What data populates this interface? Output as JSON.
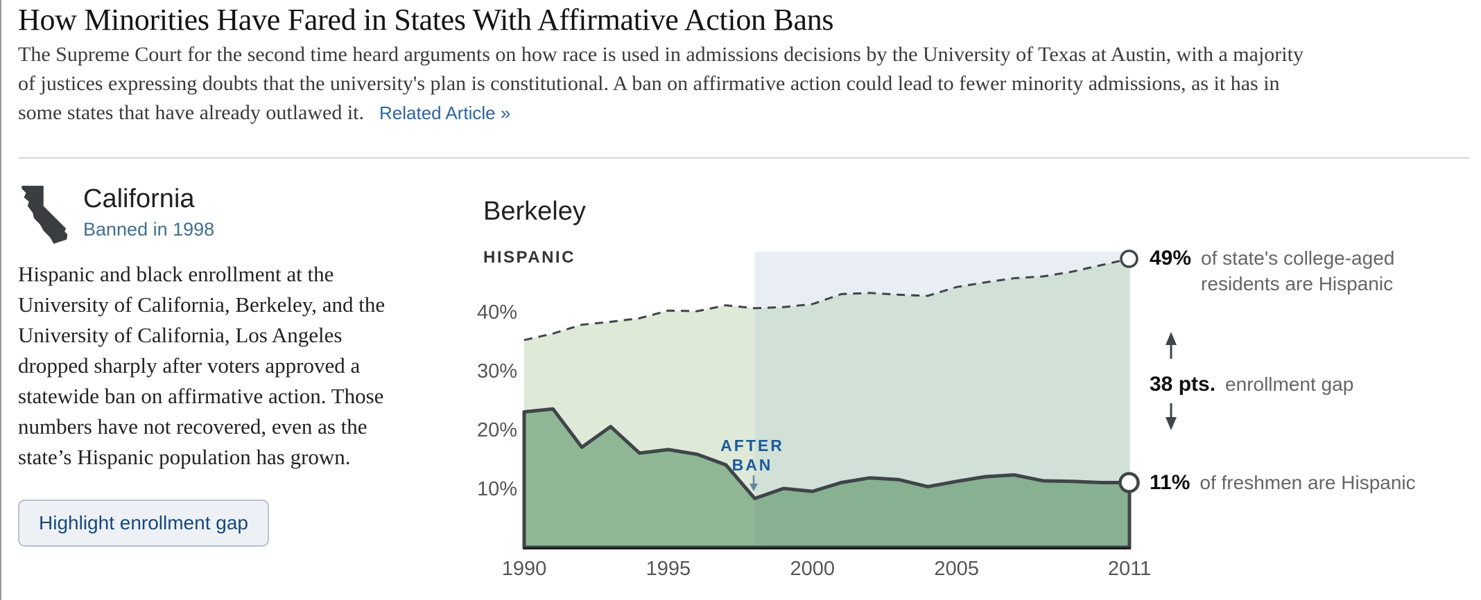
{
  "theme": {
    "link_blue": "#2c65a0",
    "banned_teal": "#40708e",
    "button_text": "#17497a",
    "annotation_gray": "#656565",
    "annotation_dark": "#111111"
  },
  "header": {
    "title": "How Minorities Have Fared in States With Affirmative Action Bans",
    "intro_lines": [
      "The Supreme Court for the second time heard arguments on how race is used in admissions decisions by the University of Texas at Austin, with a majority",
      "of justices expressing doubts that the university's plan is constitutional. A ban on affirmative action could lead to fewer minority admissions, as it has in",
      "some states that have already outlawed it."
    ],
    "related_link": "Related Article »"
  },
  "state_panel": {
    "name": "California",
    "banned_label": "Banned in 1998",
    "icon": "california-silhouette-icon",
    "body_lines": [
      "Hispanic and black enrollment at the",
      "University of California, Berkeley, and the",
      "University of California, Los Angeles",
      "dropped sharply after voters approved a",
      "statewide ban on affirmative action. Those",
      "numbers have not recovered, even as the",
      "state’s Hispanic population has grown."
    ],
    "button_label": "Highlight enrollment gap"
  },
  "chart_data": {
    "type": "area",
    "title": "Berkeley",
    "series_label": "HISPANIC",
    "x": [
      1990,
      1991,
      1992,
      1993,
      1994,
      1995,
      1996,
      1997,
      1998,
      1999,
      2000,
      2001,
      2002,
      2003,
      2004,
      2005,
      2006,
      2007,
      2008,
      2009,
      2010,
      2011
    ],
    "series": [
      {
        "name": "Share of state's college-aged residents who are Hispanic",
        "style": "dashed",
        "values": [
          35.2,
          36.3,
          37.8,
          38.3,
          38.9,
          40.2,
          40.1,
          41.1,
          40.6,
          40.8,
          41.3,
          43.0,
          43.2,
          42.9,
          42.7,
          44.2,
          45.0,
          45.7,
          46.0,
          46.8,
          47.9,
          49.0
        ]
      },
      {
        "name": "Share of freshmen who are Hispanic",
        "style": "solid",
        "values": [
          23.0,
          23.5,
          17.0,
          20.5,
          16.0,
          16.6,
          15.8,
          14.0,
          8.3,
          10.0,
          9.5,
          11.0,
          11.8,
          11.5,
          10.3,
          11.2,
          12.0,
          12.3,
          11.3,
          11.2,
          11.0,
          11.0
        ]
      }
    ],
    "ban_year": 1998,
    "xticks": [
      1990,
      1995,
      2000,
      2005,
      2011
    ],
    "yticks": [
      {
        "value": 10,
        "label": "10%"
      },
      {
        "value": 20,
        "label": "20%"
      },
      {
        "value": 30,
        "label": "30%"
      },
      {
        "value": 40,
        "label": "40%"
      }
    ],
    "ylim": [
      0,
      50
    ],
    "grid": false,
    "legend_position": "none",
    "annotations": {
      "after_ban": {
        "text": "AFTER BAN"
      },
      "end_top": {
        "value_label": "49%",
        "text": "of state's college-aged residents are Hispanic"
      },
      "gap": {
        "value_label": "38 pts.",
        "text": "enrollment gap"
      },
      "end_bottom": {
        "value_label": "11%",
        "text": "of freshmen are Hispanic"
      }
    },
    "colors": {
      "band_after_ban": "#e8eef3",
      "area_between_pre_ban": "#dfe9d8",
      "area_between_post_ban": "#d2e1d8",
      "area_freshmen_pre_ban": "#8fb795",
      "area_freshmen_post_ban": "#88b192",
      "line": "#3f4549",
      "axis": "#1a1c1e",
      "tick": "#555555",
      "after_ban_text": "#1d5a99",
      "after_ban_arrow": "#5f87a0"
    }
  }
}
